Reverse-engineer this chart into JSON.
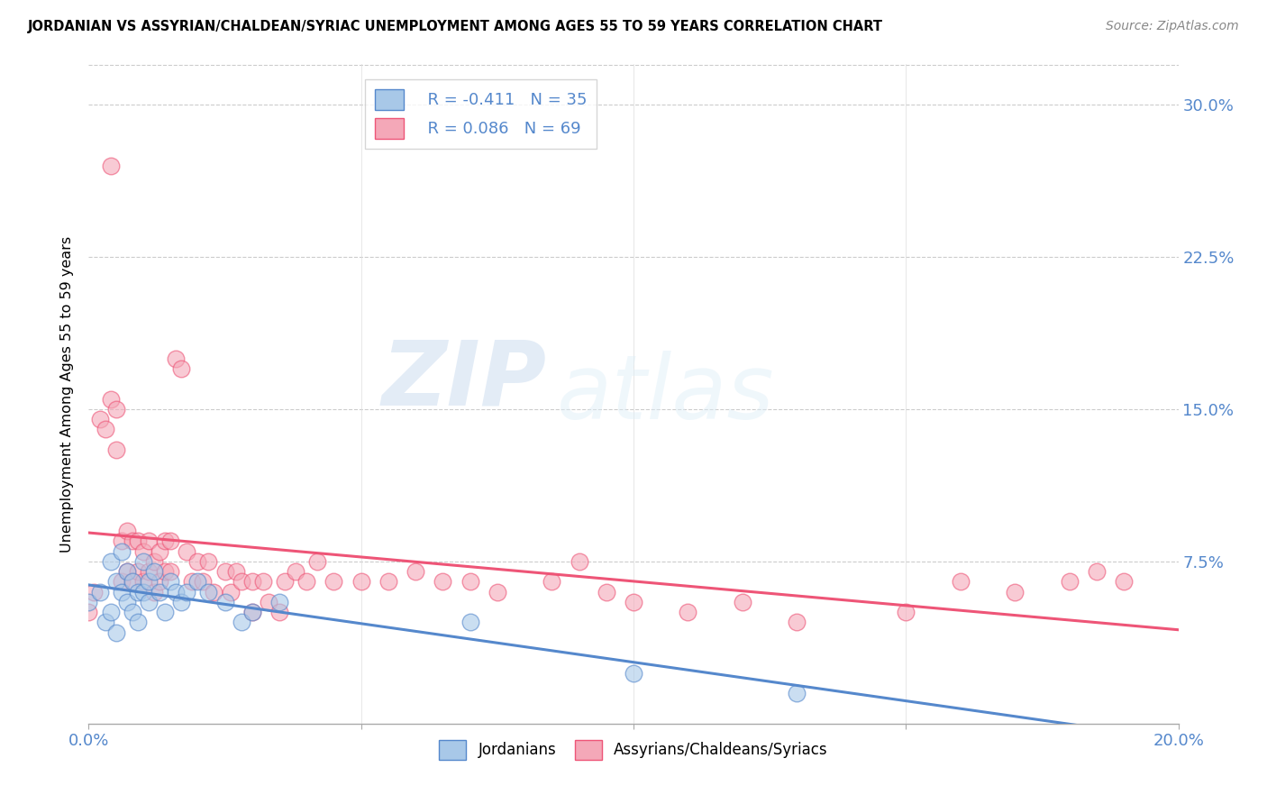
{
  "title": "JORDANIAN VS ASSYRIAN/CHALDEAN/SYRIAC UNEMPLOYMENT AMONG AGES 55 TO 59 YEARS CORRELATION CHART",
  "source": "Source: ZipAtlas.com",
  "ylabel": "Unemployment Among Ages 55 to 59 years",
  "yticks": [
    0.0,
    0.075,
    0.15,
    0.225,
    0.3
  ],
  "ytick_labels": [
    "",
    "7.5%",
    "15.0%",
    "22.5%",
    "30.0%"
  ],
  "xlim": [
    0.0,
    0.2
  ],
  "ylim": [
    -0.005,
    0.32
  ],
  "legend_r_jordanian": "R = -0.411",
  "legend_n_jordanian": "N = 35",
  "legend_r_assyrian": "R = 0.086",
  "legend_n_assyrian": "N = 69",
  "jordanian_color": "#a8c8e8",
  "assyrian_color": "#f4a8b8",
  "trendline_jordanian_color": "#5588cc",
  "trendline_assyrian_color": "#ee5577",
  "watermark_zip": "ZIP",
  "watermark_atlas": "atlas",
  "jordanian_x": [
    0.0,
    0.002,
    0.003,
    0.004,
    0.004,
    0.005,
    0.005,
    0.006,
    0.006,
    0.007,
    0.007,
    0.008,
    0.008,
    0.009,
    0.009,
    0.01,
    0.01,
    0.011,
    0.011,
    0.012,
    0.013,
    0.014,
    0.015,
    0.016,
    0.017,
    0.018,
    0.02,
    0.022,
    0.025,
    0.028,
    0.03,
    0.035,
    0.07,
    0.1,
    0.13
  ],
  "jordanian_y": [
    0.055,
    0.06,
    0.045,
    0.075,
    0.05,
    0.065,
    0.04,
    0.08,
    0.06,
    0.07,
    0.055,
    0.065,
    0.05,
    0.06,
    0.045,
    0.075,
    0.06,
    0.065,
    0.055,
    0.07,
    0.06,
    0.05,
    0.065,
    0.06,
    0.055,
    0.06,
    0.065,
    0.06,
    0.055,
    0.045,
    0.05,
    0.055,
    0.045,
    0.02,
    0.01
  ],
  "assyrian_x": [
    0.0,
    0.001,
    0.002,
    0.003,
    0.004,
    0.004,
    0.005,
    0.005,
    0.006,
    0.006,
    0.007,
    0.007,
    0.008,
    0.008,
    0.009,
    0.009,
    0.01,
    0.01,
    0.011,
    0.011,
    0.012,
    0.012,
    0.013,
    0.013,
    0.014,
    0.014,
    0.015,
    0.015,
    0.016,
    0.017,
    0.018,
    0.019,
    0.02,
    0.021,
    0.022,
    0.023,
    0.025,
    0.026,
    0.027,
    0.028,
    0.03,
    0.03,
    0.032,
    0.033,
    0.035,
    0.036,
    0.038,
    0.04,
    0.042,
    0.045,
    0.05,
    0.055,
    0.06,
    0.065,
    0.07,
    0.075,
    0.085,
    0.09,
    0.095,
    0.1,
    0.11,
    0.12,
    0.13,
    0.15,
    0.16,
    0.17,
    0.18,
    0.185,
    0.19
  ],
  "assyrian_y": [
    0.05,
    0.06,
    0.145,
    0.14,
    0.27,
    0.155,
    0.15,
    0.13,
    0.085,
    0.065,
    0.09,
    0.07,
    0.085,
    0.065,
    0.085,
    0.07,
    0.08,
    0.065,
    0.085,
    0.07,
    0.075,
    0.06,
    0.08,
    0.065,
    0.085,
    0.07,
    0.085,
    0.07,
    0.175,
    0.17,
    0.08,
    0.065,
    0.075,
    0.065,
    0.075,
    0.06,
    0.07,
    0.06,
    0.07,
    0.065,
    0.065,
    0.05,
    0.065,
    0.055,
    0.05,
    0.065,
    0.07,
    0.065,
    0.075,
    0.065,
    0.065,
    0.065,
    0.07,
    0.065,
    0.065,
    0.06,
    0.065,
    0.075,
    0.06,
    0.055,
    0.05,
    0.055,
    0.045,
    0.05,
    0.065,
    0.06,
    0.065,
    0.07,
    0.065
  ]
}
